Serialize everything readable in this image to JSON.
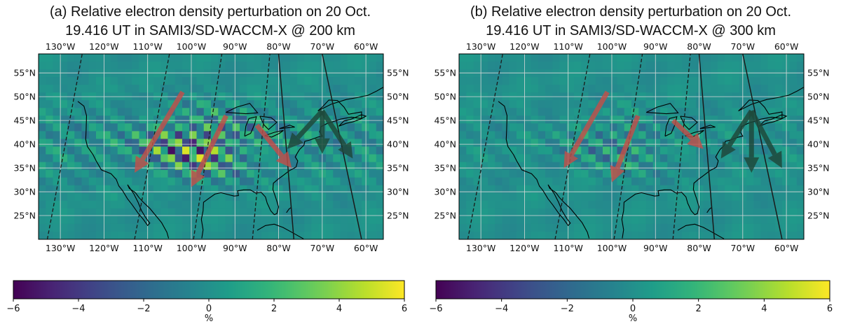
{
  "colors": {
    "arrow_red": "#c1504a",
    "arrow_dark": "#1e4a3c",
    "coast": "#000000",
    "colormap": "viridis"
  },
  "chart_data": [
    {
      "type": "heatmap",
      "title": "(a) Relative electron density perturbation on 20 Oct.",
      "subtitle": "19.416 UT in SAMI3/SD-WACCM-X @ 200 km",
      "x_ticks": [
        "130°W",
        "120°W",
        "110°W",
        "100°W",
        "90°W",
        "80°W",
        "70°W",
        "60°W"
      ],
      "y_ticks": [
        "55°N",
        "50°N",
        "45°N",
        "40°N",
        "35°N",
        "30°N",
        "25°N"
      ],
      "xlim": [
        -135,
        -56
      ],
      "ylim": [
        20,
        59
      ],
      "grid": true,
      "colorbar": {
        "min": -6,
        "max": 6,
        "ticks": [
          "−6",
          "−4",
          "−2",
          "0",
          "2",
          "4",
          "6"
        ],
        "label": "%",
        "colormap": "viridis"
      },
      "arrows": [
        {
          "color": "red",
          "from": [
            -102,
            51
          ],
          "to": [
            -113,
            34
          ]
        },
        {
          "color": "red",
          "from": [
            -92,
            46
          ],
          "to": [
            -100,
            31
          ]
        },
        {
          "color": "red",
          "from": [
            -85,
            44
          ],
          "to": [
            -77,
            35
          ]
        },
        {
          "color": "dark",
          "from": [
            -70,
            47
          ],
          "to": [
            -78,
            39
          ]
        },
        {
          "color": "dark",
          "from": [
            -70,
            47
          ],
          "to": [
            -70,
            38
          ]
        },
        {
          "color": "dark",
          "from": [
            -70,
            47
          ],
          "to": [
            -63,
            37
          ]
        }
      ],
      "wave_amplitude": 1.0
    },
    {
      "type": "heatmap",
      "title": "(b) Relative electron density perturbation on 20 Oct.",
      "subtitle": "19.416 UT in SAMI3/SD-WACCM-X @ 300 km",
      "x_ticks": [
        "130°W",
        "120°W",
        "110°W",
        "100°W",
        "90°W",
        "80°W",
        "70°W",
        "60°W"
      ],
      "y_ticks": [
        "55°N",
        "50°N",
        "45°N",
        "40°N",
        "35°N",
        "30°N",
        "25°N"
      ],
      "xlim": [
        -135,
        -56
      ],
      "ylim": [
        20,
        59
      ],
      "grid": true,
      "colorbar": {
        "min": -6,
        "max": 6,
        "ticks": [
          "−6",
          "−4",
          "−2",
          "0",
          "2",
          "4",
          "6"
        ],
        "label": "%",
        "colormap": "viridis"
      },
      "arrows": [
        {
          "color": "red",
          "from": [
            -101,
            51
          ],
          "to": [
            -111,
            35
          ]
        },
        {
          "color": "red",
          "from": [
            -94,
            46
          ],
          "to": [
            -100,
            32
          ]
        },
        {
          "color": "red",
          "from": [
            -86,
            45
          ],
          "to": [
            -79,
            39
          ]
        },
        {
          "color": "dark",
          "from": [
            -68,
            47
          ],
          "to": [
            -75,
            37
          ]
        },
        {
          "color": "dark",
          "from": [
            -68,
            47
          ],
          "to": [
            -68,
            34
          ]
        },
        {
          "color": "dark",
          "from": [
            -68,
            47
          ],
          "to": [
            -61,
            35
          ]
        }
      ],
      "wave_amplitude": 0.45
    }
  ]
}
